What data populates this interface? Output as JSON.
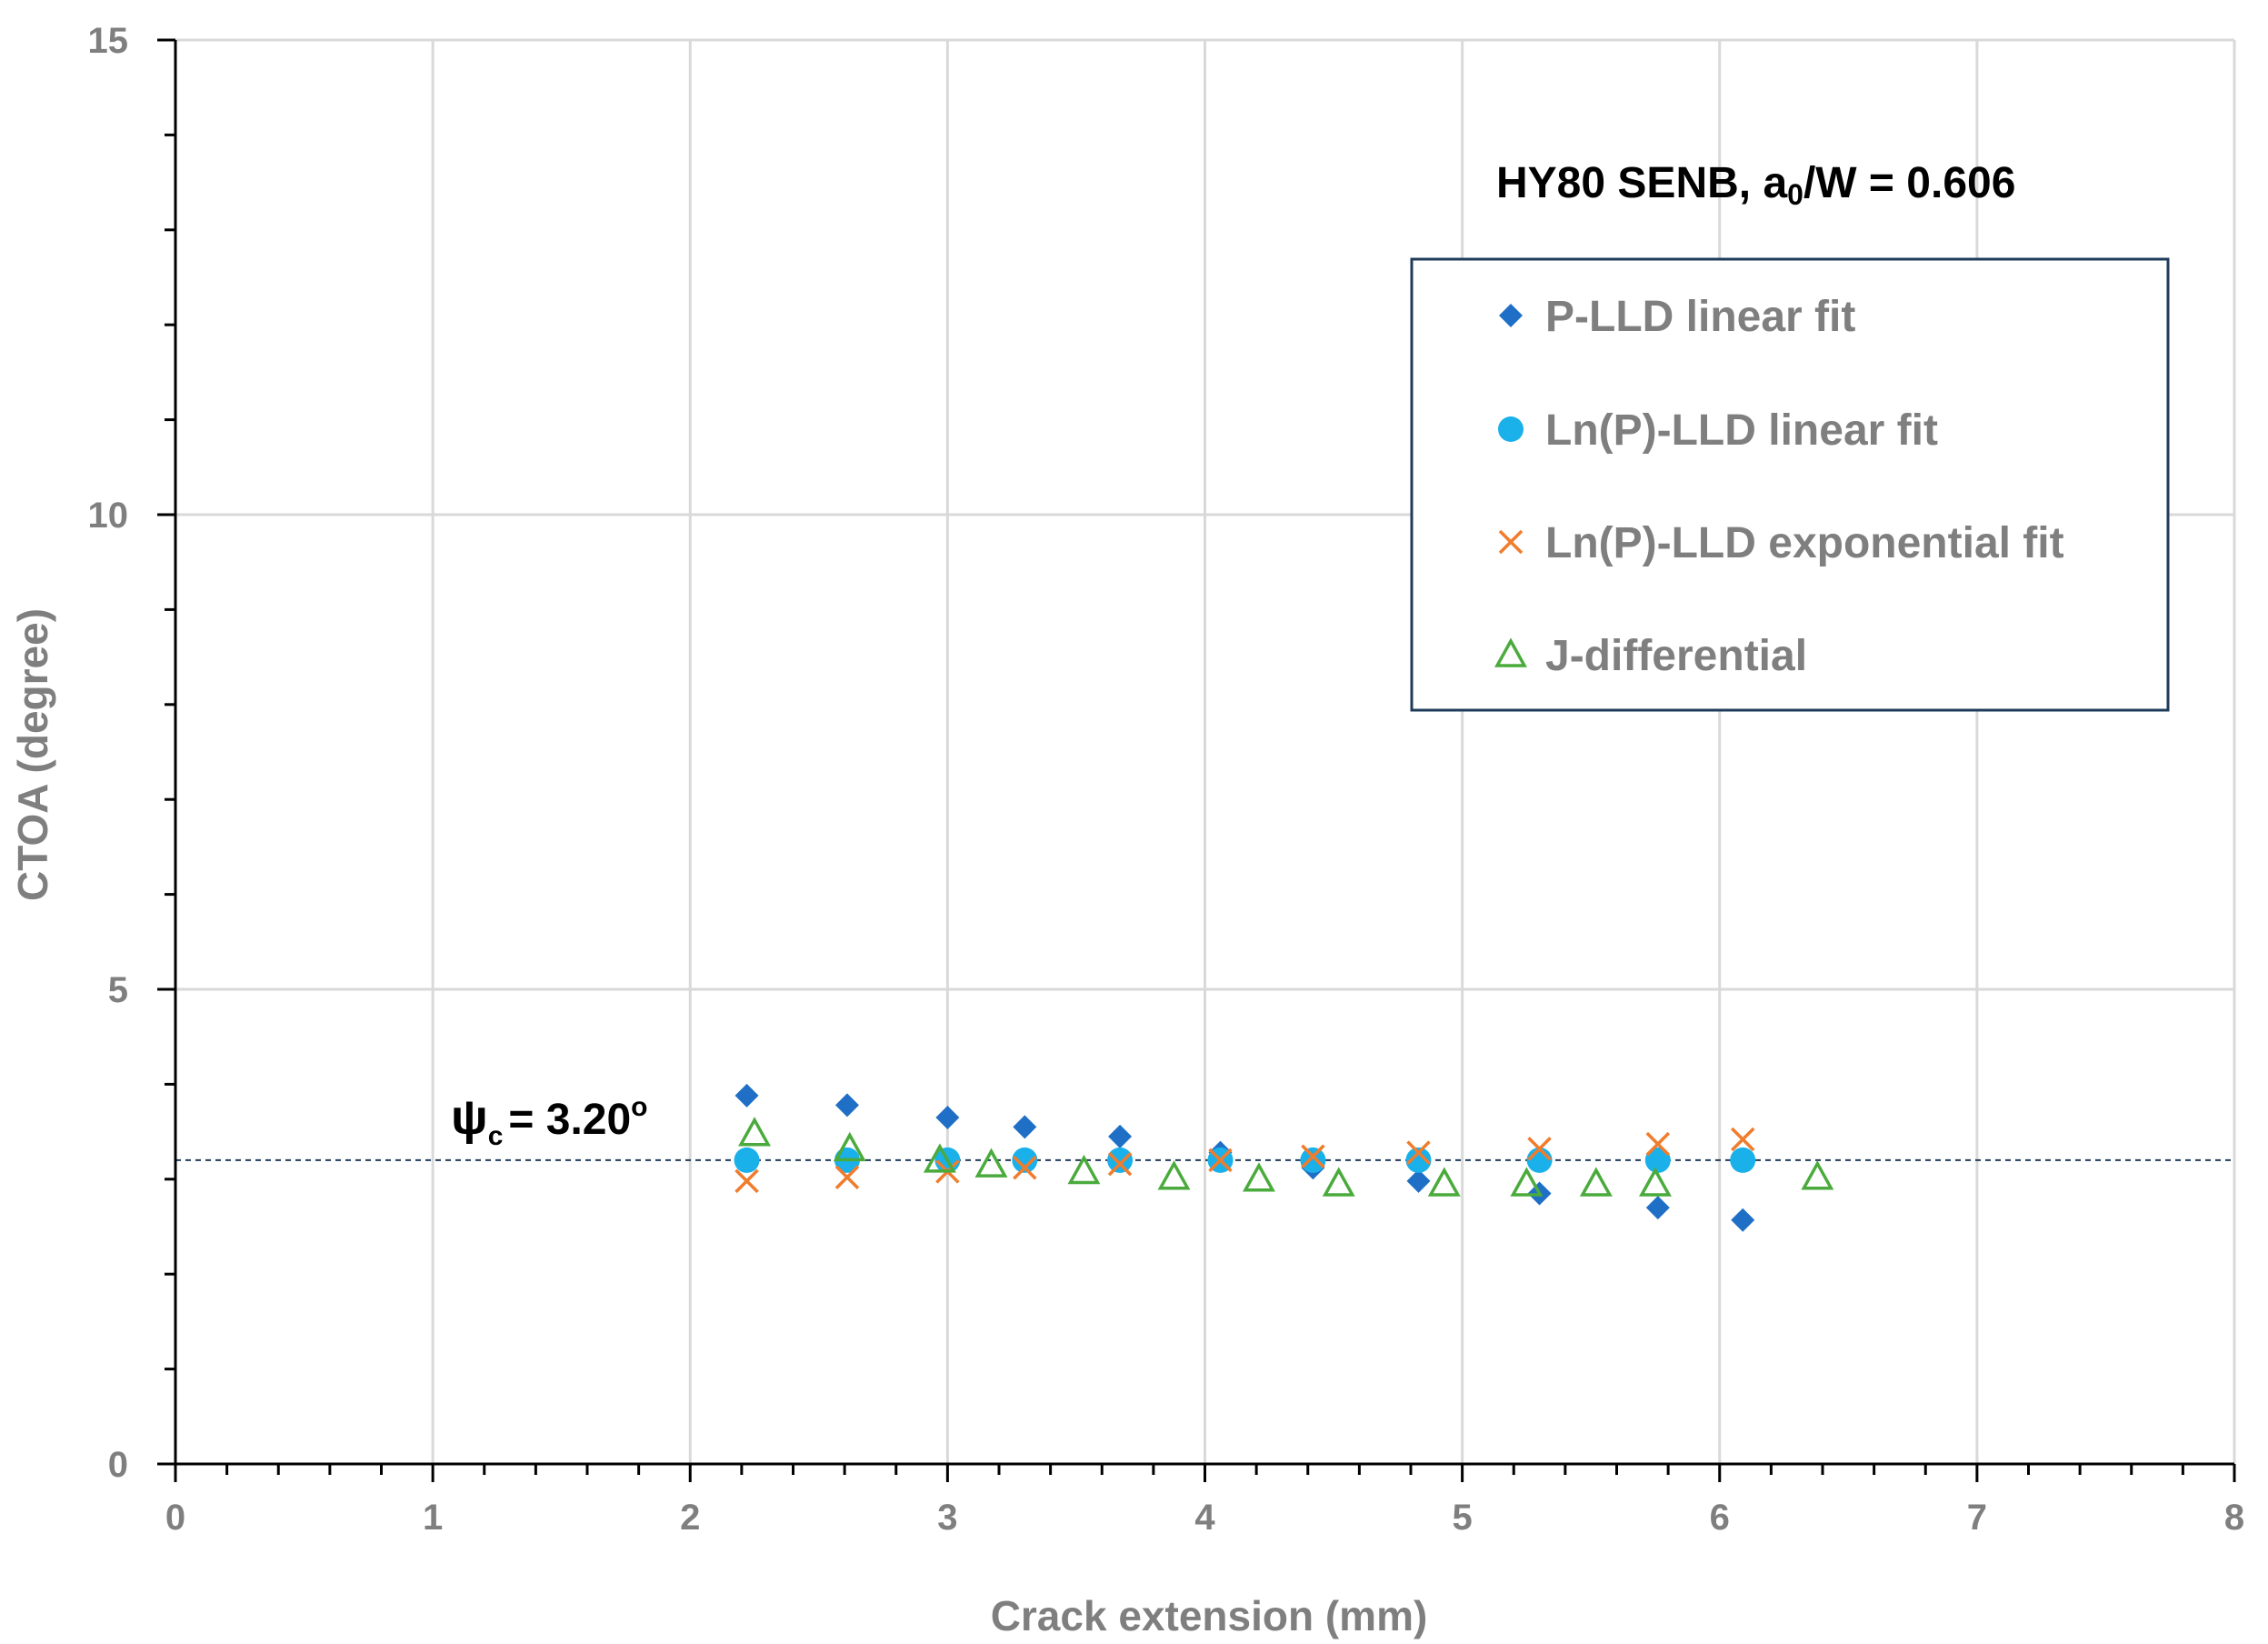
{
  "chart_data": {
    "type": "scatter",
    "title": "",
    "xlabel": "Crack extension (mm)",
    "ylabel": "CTOA (degree)",
    "xlim": [
      0,
      8
    ],
    "ylim": [
      0,
      15
    ],
    "x_ticks": [
      "0",
      "1",
      "2",
      "3",
      "4",
      "5",
      "6",
      "7",
      "8"
    ],
    "y_ticks": [
      "0",
      "5",
      "10",
      "15"
    ],
    "grid": true,
    "legend_position": "upper-right",
    "annotation": {
      "prefix": "HY80 SENB, a",
      "subscript": "0",
      "suffix": "/W = 0.606"
    },
    "reference_line": {
      "value": 3.2,
      "label_symbol": "ψ",
      "label_subscript": "c",
      "label_value": "= 3.20",
      "label_superscript": "o"
    },
    "series": [
      {
        "name": "P-LLD linear fit",
        "marker": "diamond",
        "color": "#1f6fc6",
        "x": [
          2.22,
          2.61,
          3.0,
          3.3,
          3.67,
          4.06,
          4.42,
          4.83,
          5.3,
          5.76,
          6.09
        ],
        "y": [
          3.88,
          3.78,
          3.65,
          3.55,
          3.45,
          3.28,
          3.12,
          2.98,
          2.85,
          2.7,
          2.57
        ]
      },
      {
        "name": "Ln(P)-LLD linear fit",
        "marker": "circle",
        "color": "#1ab0ea",
        "x": [
          2.22,
          2.61,
          3.0,
          3.3,
          3.67,
          4.06,
          4.42,
          4.83,
          5.3,
          5.76,
          6.09
        ],
        "y": [
          3.2,
          3.2,
          3.2,
          3.2,
          3.2,
          3.2,
          3.2,
          3.2,
          3.2,
          3.2,
          3.2
        ]
      },
      {
        "name": "Ln(P)-LLD exponential fit",
        "marker": "x",
        "color": "#f07c2c",
        "x": [
          2.22,
          2.61,
          3.0,
          3.3,
          3.67,
          4.06,
          4.42,
          4.83,
          5.3,
          5.76,
          6.09
        ],
        "y": [
          2.98,
          3.02,
          3.08,
          3.12,
          3.16,
          3.2,
          3.24,
          3.28,
          3.32,
          3.37,
          3.42
        ]
      },
      {
        "name": "J-differential",
        "marker": "triangle",
        "color": "#4aab3c",
        "x": [
          2.25,
          2.62,
          2.97,
          3.17,
          3.53,
          3.88,
          4.21,
          4.52,
          4.93,
          5.25,
          5.52,
          5.75,
          6.38
        ],
        "y": [
          3.48,
          3.32,
          3.2,
          3.15,
          3.08,
          3.02,
          3.0,
          2.95,
          2.95,
          2.95,
          2.95,
          2.95,
          3.02
        ]
      }
    ]
  }
}
